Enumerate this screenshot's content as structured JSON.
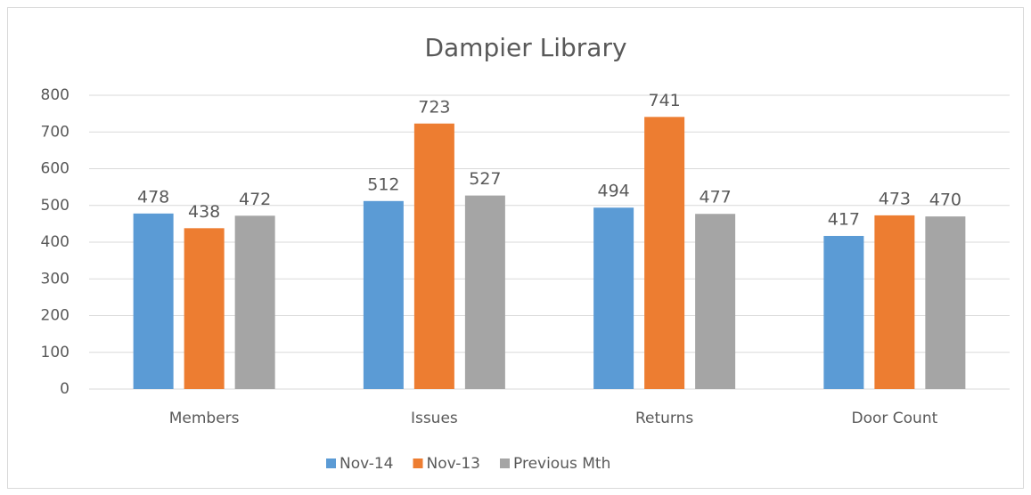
{
  "chart_data": {
    "type": "bar",
    "title": "Dampier Library",
    "categories": [
      "Members",
      "Issues",
      "Returns",
      "Door Count"
    ],
    "series": [
      {
        "name": "Nov-14",
        "color": "#5b9bd5",
        "values": [
          478,
          512,
          494,
          417
        ]
      },
      {
        "name": "Nov-13",
        "color": "#ed7d31",
        "values": [
          438,
          723,
          741,
          473
        ]
      },
      {
        "name": "Previous Mth",
        "color": "#a5a5a5",
        "values": [
          472,
          527,
          477,
          470
        ]
      }
    ],
    "ylim": [
      0,
      800
    ],
    "yticks": [
      0,
      100,
      200,
      300,
      400,
      500,
      600,
      700,
      800
    ],
    "grid": true,
    "legend": "bottom"
  }
}
